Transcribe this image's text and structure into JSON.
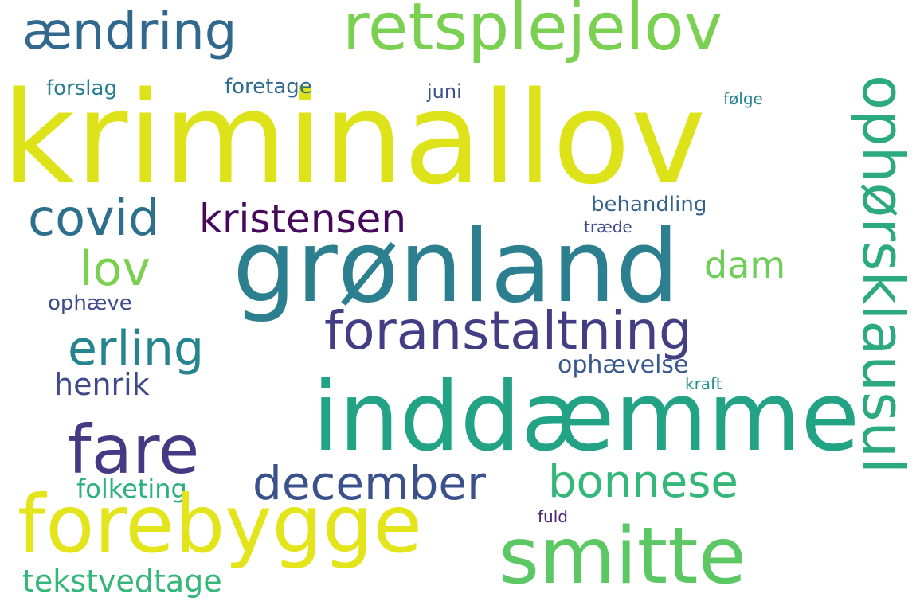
{
  "words": {
    "kriminallov": {
      "text": "kriminallov",
      "color": "#dde318"
    },
    "groenland": {
      "text": "grønland",
      "color": "#2c7f8e"
    },
    "inddaemme": {
      "text": "inddæmme",
      "color": "#22a385"
    },
    "smitte": {
      "text": "smitte",
      "color": "#5cc863"
    },
    "forebygge": {
      "text": "forebygge",
      "color": "#e3e41a"
    },
    "retsplejelov": {
      "text": "retsplejelov",
      "color": "#7ad151"
    },
    "fare": {
      "text": "fare",
      "color": "#443983"
    },
    "aendring": {
      "text": "ændring",
      "color": "#31688e"
    },
    "ophoersklausul": {
      "text": "ophørsklausul",
      "color": "#2aaa7e"
    },
    "foranstaltning": {
      "text": "foranstaltning",
      "color": "#433d84"
    },
    "covid": {
      "text": "covid",
      "color": "#2d708e"
    },
    "kristensen": {
      "text": "kristensen",
      "color": "#46085c"
    },
    "lov": {
      "text": "lov",
      "color": "#7bd04f"
    },
    "erling": {
      "text": "erling",
      "color": "#25858e"
    },
    "december": {
      "text": "december",
      "color": "#3b518b"
    },
    "bonnese": {
      "text": "bonnese",
      "color": "#35b779"
    },
    "dam": {
      "text": "dam",
      "color": "#6ece58"
    },
    "henrik": {
      "text": "henrik",
      "color": "#3e4a89"
    },
    "tekstvedtage": {
      "text": "tekstvedtage",
      "color": "#35b779"
    },
    "folketing": {
      "text": "folketing",
      "color": "#2ab07f"
    },
    "ophaevelse": {
      "text": "ophævelse",
      "color": "#38598c"
    },
    "behandling": {
      "text": "behandling",
      "color": "#33638d"
    },
    "forslag": {
      "text": "forslag",
      "color": "#287d8e"
    },
    "foretage": {
      "text": "foretage",
      "color": "#2f6b8e"
    },
    "ophaeve": {
      "text": "ophæve",
      "color": "#3d4d8a"
    },
    "juni": {
      "text": "juni",
      "color": "#3b528b"
    },
    "foelge": {
      "text": "følge",
      "color": "#25848e"
    },
    "traede": {
      "text": "træde",
      "color": "#3f4788"
    },
    "kraft": {
      "text": "kraft",
      "color": "#21918c"
    },
    "fuld": {
      "text": "fuld",
      "color": "#482374"
    }
  }
}
